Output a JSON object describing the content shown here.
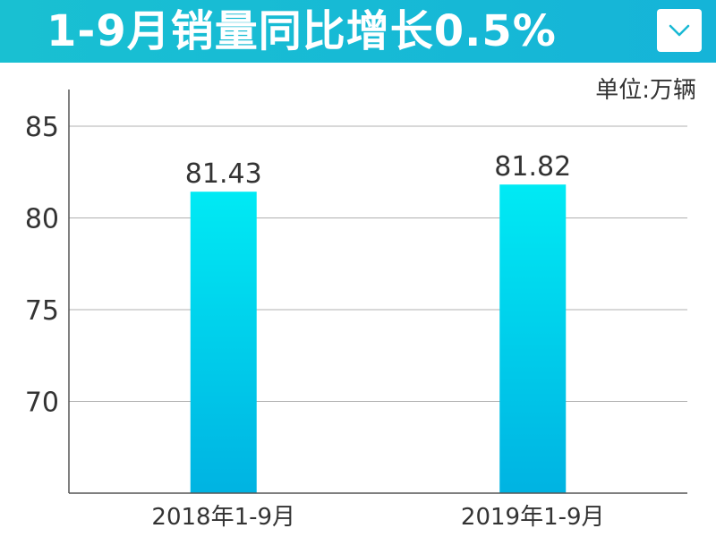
{
  "header": {
    "title": "1-9月销量同比增长0.5%",
    "accent": "#19c0d2",
    "menu_icon": "chevron-down-icon"
  },
  "chart_data": {
    "type": "bar",
    "title": "1-9月销量同比增长0.5%",
    "unit": "单位:万辆",
    "categories": [
      "2018年1-9月",
      "2019年1-9月"
    ],
    "values": [
      81.43,
      81.82
    ],
    "value_labels": [
      "81.43",
      "81.82"
    ],
    "yticks": [
      70,
      75,
      80,
      85
    ],
    "ylim": [
      65,
      87
    ],
    "grid": true,
    "bar_color_top": "#00eaf4",
    "bar_color_bottom": "#00b3e2"
  }
}
